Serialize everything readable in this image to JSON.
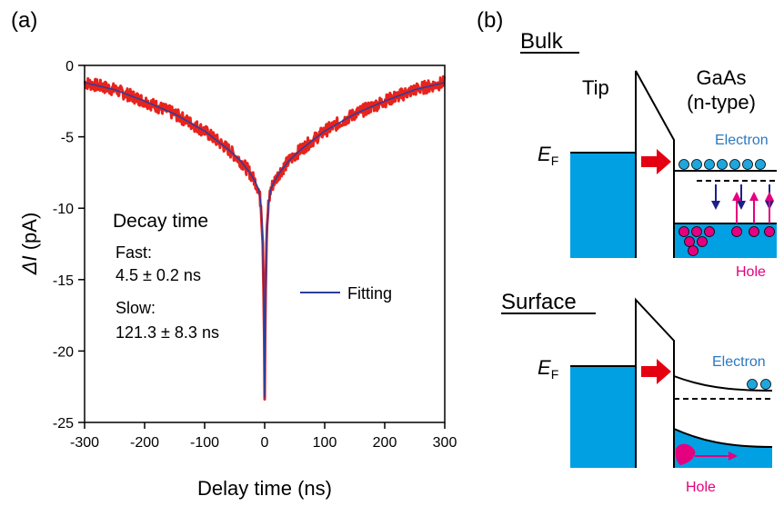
{
  "colors": {
    "data_line": "#e8231c",
    "fit_line": "#2e3d9c",
    "metal_fill": "#00a0e3",
    "electron": "#1fa6dc",
    "hole": "#e4007f",
    "red_arrow": "#e50011",
    "down_arrow": "#1d2088",
    "electron_text": "#2a79c0",
    "hole_text": "#e4007f"
  },
  "chart_data": {
    "type": "line",
    "panel_label": "(a)",
    "xlabel": "Delay time (ns)",
    "ylabel_symbol": "ΔI",
    "ylabel_unit": " (pA)",
    "xlim": [
      -300,
      300
    ],
    "ylim": [
      -25,
      0
    ],
    "x_ticks": [
      "-300",
      "-200",
      "-100",
      "0",
      "100",
      "200",
      "300"
    ],
    "y_ticks": [
      "0",
      "-5",
      "-10",
      "-15",
      "-20",
      "-25"
    ],
    "series": [
      {
        "name": "Fitting",
        "x": [
          -300,
          -250,
          -200,
          -150,
          -100,
          -60,
          -40,
          -25,
          -15,
          -10,
          -6,
          -3,
          -1,
          0,
          1,
          3,
          6,
          10,
          15,
          25,
          40,
          60,
          100,
          150,
          200,
          250,
          300
        ],
        "values": [
          -1.2,
          -1.7,
          -2.5,
          -3.4,
          -4.6,
          -5.9,
          -6.7,
          -7.5,
          -8.2,
          -8.7,
          -9.8,
          -12.5,
          -17.5,
          -23.3,
          -17.5,
          -12.5,
          -9.8,
          -8.7,
          -8.2,
          -7.5,
          -6.7,
          -5.9,
          -4.6,
          -3.4,
          -2.5,
          -1.7,
          -1.2
        ]
      }
    ],
    "legend": {
      "label": "Fitting",
      "placement": "right"
    },
    "annotations": {
      "decay_title": "Decay time",
      "fast_label": "Fast:",
      "fast_value": "4.5 ± 0.2 ns",
      "slow_label": "Slow:",
      "slow_value": "121.3 ± 8.3 ns"
    }
  },
  "diagram": {
    "panel_label": "(b)",
    "bulk": {
      "title": "Bulk",
      "tip_label": "Tip",
      "sample_label_1": "GaAs",
      "sample_label_2": "(n-type)",
      "fermi_symbol": "E",
      "fermi_sub": "F",
      "electron_label": "Electron",
      "hole_label": "Hole"
    },
    "surface": {
      "title": "Surface",
      "fermi_symbol": "E",
      "fermi_sub": "F",
      "electron_label": "Electron",
      "hole_label": "Hole"
    }
  }
}
